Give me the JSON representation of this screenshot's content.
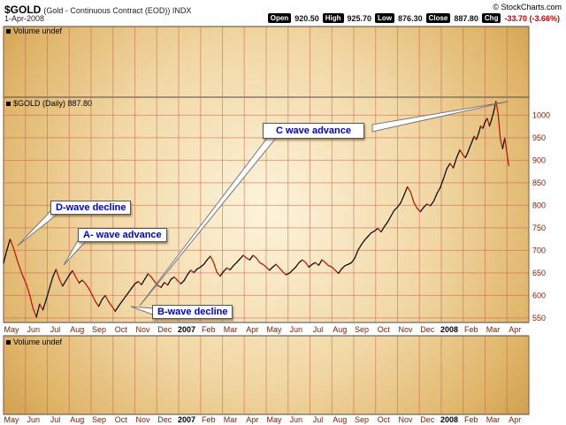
{
  "header": {
    "symbol": "$GOLD",
    "description": "(Gold - Continuous Contract (EOD)) INDX",
    "copyright": "© StockCharts.com",
    "date": "1-Apr-2008",
    "quote": {
      "fields": [
        {
          "label": "Open",
          "value": "920.50"
        },
        {
          "label": "High",
          "value": "925.70"
        },
        {
          "label": "Low",
          "value": "876.30"
        },
        {
          "label": "Close",
          "value": "887.80"
        },
        {
          "label": "Chg",
          "value": "-33.70 (-3.66%)"
        }
      ]
    }
  },
  "panes": {
    "volume_top_label": "Volume undef",
    "volume_bottom_label": "Volume undef",
    "price_pane_label": "$GOLD (Daily) 887.80"
  },
  "annotations": {
    "c_wave": "C wave advance",
    "d_wave": "D-wave decline",
    "a_wave": "A- wave advance",
    "b_wave": "B-wave decline"
  },
  "colors": {
    "annotation_text": "#0000cc",
    "negative_change": "#cc0000",
    "up_segment": "#000000",
    "down_segment": "#bb1100",
    "grid": "#c85a46",
    "axis_labels": "#7a2000",
    "pane_border": "#4a4a4a",
    "background_gold_dark": "#c08c35",
    "background_gold_light": "#fdf4dc"
  },
  "chart_data": {
    "type": "line",
    "title": "$GOLD (Gold - Continuous Contract (EOD)) INDX",
    "subtitle": "$GOLD (Daily) 887.80",
    "legend_position": "none",
    "grid": true,
    "x_axis": {
      "unit": "month",
      "tick_labels": [
        "May",
        "Jun",
        "Jul",
        "Aug",
        "Sep",
        "Oct",
        "Nov",
        "Dec",
        "2007",
        "Feb",
        "Mar",
        "Apr",
        "May",
        "Jun",
        "Jul",
        "Aug",
        "Sep",
        "Oct",
        "Nov",
        "Dec",
        "2008",
        "Feb",
        "Mar",
        "Apr"
      ],
      "bold_ticks": [
        "2007",
        "2008"
      ],
      "range_months": [
        0,
        24
      ]
    },
    "y_axis": {
      "side": "right",
      "ticks": [
        550,
        600,
        650,
        700,
        750,
        800,
        850,
        900,
        950,
        1000
      ],
      "lim": [
        540,
        1040
      ]
    },
    "series": [
      {
        "name": "$GOLD daily close (USD)",
        "points": [
          [
            0,
            672
          ],
          [
            0.15,
            700
          ],
          [
            0.3,
            725
          ],
          [
            0.45,
            706
          ],
          [
            0.6,
            682
          ],
          [
            0.75,
            660
          ],
          [
            0.9,
            641
          ],
          [
            1.05,
            624
          ],
          [
            1.2,
            600
          ],
          [
            1.35,
            571
          ],
          [
            1.5,
            552
          ],
          [
            1.65,
            581
          ],
          [
            1.8,
            568
          ],
          [
            1.95,
            591
          ],
          [
            2.1,
            616
          ],
          [
            2.25,
            641
          ],
          [
            2.4,
            658
          ],
          [
            2.55,
            636
          ],
          [
            2.7,
            621
          ],
          [
            2.85,
            633
          ],
          [
            3,
            645
          ],
          [
            3.15,
            655
          ],
          [
            3.3,
            641
          ],
          [
            3.45,
            628
          ],
          [
            3.6,
            634
          ],
          [
            3.75,
            626
          ],
          [
            3.9,
            615
          ],
          [
            4.05,
            601
          ],
          [
            4.2,
            586
          ],
          [
            4.35,
            576
          ],
          [
            4.5,
            591
          ],
          [
            4.65,
            600
          ],
          [
            4.8,
            586
          ],
          [
            4.95,
            576
          ],
          [
            5.1,
            565
          ],
          [
            5.25,
            576
          ],
          [
            5.4,
            586
          ],
          [
            5.55,
            596
          ],
          [
            5.7,
            606
          ],
          [
            5.85,
            616
          ],
          [
            6,
            626
          ],
          [
            6.15,
            631
          ],
          [
            6.3,
            624
          ],
          [
            6.45,
            636
          ],
          [
            6.6,
            648
          ],
          [
            6.75,
            641
          ],
          [
            6.9,
            631
          ],
          [
            7.05,
            622
          ],
          [
            7.2,
            618
          ],
          [
            7.35,
            629
          ],
          [
            7.5,
            623
          ],
          [
            7.65,
            636
          ],
          [
            7.8,
            641
          ],
          [
            7.95,
            633
          ],
          [
            8.1,
            626
          ],
          [
            8.25,
            633
          ],
          [
            8.4,
            646
          ],
          [
            8.55,
            656
          ],
          [
            8.7,
            651
          ],
          [
            8.85,
            659
          ],
          [
            9,
            663
          ],
          [
            9.15,
            669
          ],
          [
            9.3,
            679
          ],
          [
            9.45,
            687
          ],
          [
            9.6,
            673
          ],
          [
            9.75,
            651
          ],
          [
            9.9,
            643
          ],
          [
            10.05,
            653
          ],
          [
            10.2,
            661
          ],
          [
            10.35,
            657
          ],
          [
            10.5,
            666
          ],
          [
            10.65,
            673
          ],
          [
            10.8,
            681
          ],
          [
            10.95,
            689
          ],
          [
            11.1,
            683
          ],
          [
            11.25,
            679
          ],
          [
            11.4,
            689
          ],
          [
            11.55,
            683
          ],
          [
            11.7,
            673
          ],
          [
            11.85,
            669
          ],
          [
            12,
            663
          ],
          [
            12.15,
            656
          ],
          [
            12.3,
            663
          ],
          [
            12.45,
            669
          ],
          [
            12.6,
            661
          ],
          [
            12.75,
            653
          ],
          [
            12.9,
            646
          ],
          [
            13.05,
            649
          ],
          [
            13.2,
            656
          ],
          [
            13.35,
            663
          ],
          [
            13.5,
            673
          ],
          [
            13.65,
            679
          ],
          [
            13.8,
            673
          ],
          [
            13.95,
            663
          ],
          [
            14.1,
            669
          ],
          [
            14.25,
            673
          ],
          [
            14.4,
            667
          ],
          [
            14.55,
            679
          ],
          [
            14.7,
            673
          ],
          [
            14.85,
            666
          ],
          [
            15,
            663
          ],
          [
            15.15,
            656
          ],
          [
            15.3,
            649
          ],
          [
            15.45,
            659
          ],
          [
            15.6,
            666
          ],
          [
            15.75,
            669
          ],
          [
            15.9,
            673
          ],
          [
            16.05,
            683
          ],
          [
            16.2,
            701
          ],
          [
            16.35,
            713
          ],
          [
            16.5,
            723
          ],
          [
            16.65,
            731
          ],
          [
            16.8,
            739
          ],
          [
            16.95,
            743
          ],
          [
            17.1,
            749
          ],
          [
            17.25,
            741
          ],
          [
            17.4,
            753
          ],
          [
            17.55,
            763
          ],
          [
            17.7,
            776
          ],
          [
            17.85,
            789
          ],
          [
            18,
            796
          ],
          [
            18.15,
            806
          ],
          [
            18.3,
            823
          ],
          [
            18.45,
            841
          ],
          [
            18.6,
            829
          ],
          [
            18.75,
            806
          ],
          [
            18.9,
            793
          ],
          [
            19.05,
            786
          ],
          [
            19.2,
            796
          ],
          [
            19.35,
            803
          ],
          [
            19.5,
            799
          ],
          [
            19.65,
            809
          ],
          [
            19.8,
            826
          ],
          [
            19.95,
            839
          ],
          [
            20.1,
            859
          ],
          [
            20.25,
            881
          ],
          [
            20.4,
            893
          ],
          [
            20.55,
            883
          ],
          [
            20.7,
            906
          ],
          [
            20.85,
            923
          ],
          [
            21,
            911
          ],
          [
            21.1,
            906
          ],
          [
            21.2,
            916
          ],
          [
            21.3,
            929
          ],
          [
            21.4,
            941
          ],
          [
            21.5,
            953
          ],
          [
            21.6,
            946
          ],
          [
            21.7,
            959
          ],
          [
            21.8,
            976
          ],
          [
            21.9,
            971
          ],
          [
            22,
            985
          ],
          [
            22.1,
            993
          ],
          [
            22.2,
            976
          ],
          [
            22.3,
            991
          ],
          [
            22.4,
            1009
          ],
          [
            22.5,
            1031
          ],
          [
            22.6,
            1001
          ],
          [
            22.7,
            946
          ],
          [
            22.8,
            926
          ],
          [
            22.9,
            949
          ],
          [
            23,
            916
          ],
          [
            23.08,
            888
          ]
        ]
      }
    ]
  }
}
